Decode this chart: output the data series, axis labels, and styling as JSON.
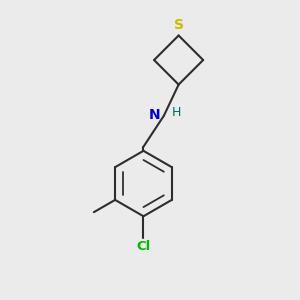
{
  "background_color": "#ebebeb",
  "bond_color": "#2d2d2d",
  "S_color": "#ccbb00",
  "N_color": "#0000cc",
  "Cl_color": "#00bb00",
  "H_color": "#006666",
  "line_width": 1.5,
  "figsize": [
    3.0,
    3.0
  ],
  "dpi": 100,
  "xlim": [
    -1.4,
    1.4
  ],
  "ylim": [
    -1.7,
    1.9
  ]
}
